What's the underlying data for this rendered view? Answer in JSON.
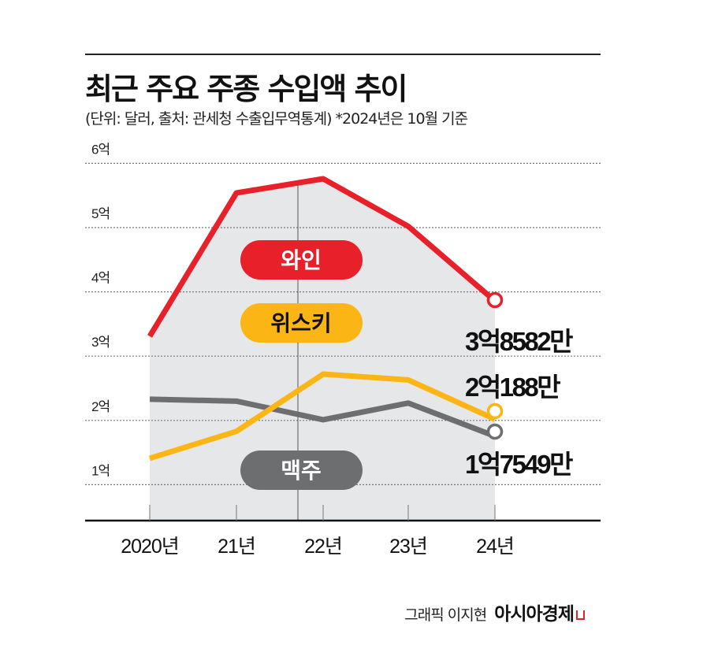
{
  "chart_data": {
    "type": "line",
    "title": "최근 주요 주종 수입액 추이",
    "subtitle": "(단위: 달러, 출처: 관세청 수출입무역통계)  *2024년은 10월 기준",
    "categories": [
      "2020년",
      "21년",
      "22년",
      "23년",
      "24년"
    ],
    "ylim": [
      0,
      6
    ],
    "yticks": [
      1,
      2,
      3,
      4,
      5,
      6
    ],
    "ytick_labels": [
      "1억",
      "2억",
      "3억",
      "4억",
      "5억",
      "6억"
    ],
    "grid": true,
    "series": [
      {
        "name": "와인",
        "color": "#e8202a",
        "values": [
          3.31,
          5.54,
          5.76,
          5.02,
          3.8582
        ],
        "end_label": "3억8582만"
      },
      {
        "name": "위스키",
        "color": "#fbb615",
        "values": [
          1.41,
          1.83,
          2.72,
          2.63,
          2.0188
        ],
        "end_label": "2억188만"
      },
      {
        "name": "맥주",
        "color": "#6d6e70",
        "values": [
          2.33,
          2.3,
          2.01,
          2.27,
          1.7549
        ],
        "end_label": "1억7549만"
      }
    ],
    "area_fill_color": "#e6e7e8"
  },
  "footer": {
    "credit": "그래픽 이지현",
    "logo": "아시아경제"
  }
}
